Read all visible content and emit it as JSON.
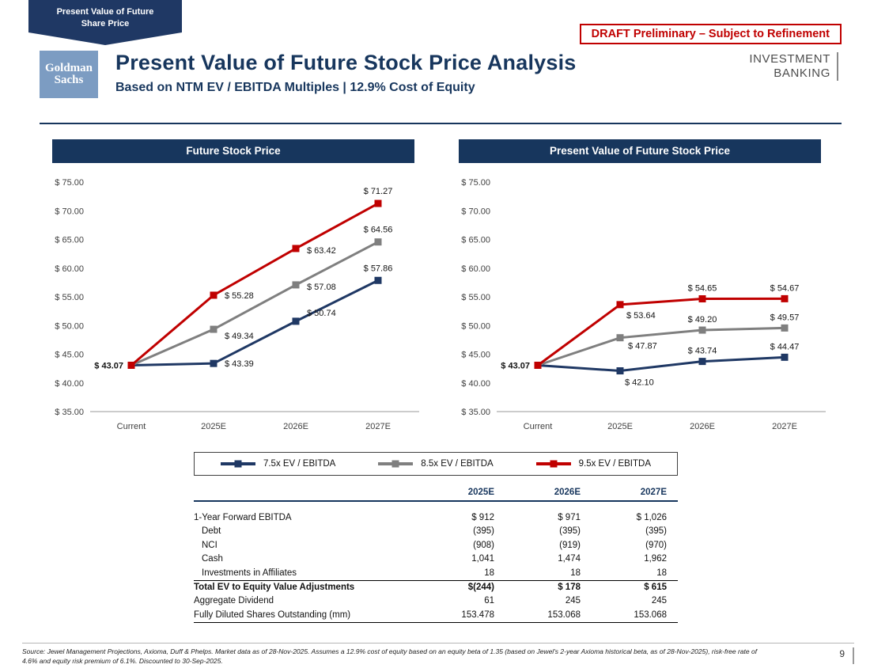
{
  "banner": {
    "line1": "Present Value of Future",
    "line2": "Share Price"
  },
  "draft_notice": "DRAFT Preliminary – Subject to Refinement",
  "header": {
    "logo_line1": "Goldman",
    "logo_line2": "Sachs",
    "title": "Present Value of Future Stock Price Analysis",
    "subtitle": "Based on NTM EV / EBITDA Multiples | 12.9% Cost of Equity",
    "division_line1": "INVESTMENT",
    "division_line2": "BANKING"
  },
  "colors": {
    "navy": "#1F3864",
    "gray": "#7F7F7F",
    "red": "#C00000",
    "header_bar": "#17365D"
  },
  "chart_data": [
    {
      "type": "line",
      "title": "Future Stock Price",
      "x_categories": [
        "Current",
        "2025E",
        "2026E",
        "2027E"
      ],
      "ylim": [
        35,
        75
      ],
      "ytick_step": 5,
      "ytick_prefix": "$ ",
      "grid": false,
      "start_label": "$ 43.07",
      "series": [
        {
          "name": "7.5x EV / EBITDA",
          "color": "#1F3864",
          "values": [
            43.07,
            43.39,
            50.74,
            57.86
          ],
          "point_labels": [
            "",
            "$ 43.39",
            "$ 50.74",
            "$ 57.86"
          ],
          "label_offsets": [
            [
              0,
              0
            ],
            [
              14,
              4
            ],
            [
              14,
              -7
            ],
            [
              0,
              -12
            ]
          ],
          "label_anchors": [
            "start",
            "start",
            "start",
            "middle"
          ]
        },
        {
          "name": "8.5x EV / EBITDA",
          "color": "#7F7F7F",
          "values": [
            43.07,
            49.34,
            57.08,
            64.56
          ],
          "point_labels": [
            "",
            "$ 49.34",
            "$ 57.08",
            "$ 64.56"
          ],
          "label_offsets": [
            [
              0,
              0
            ],
            [
              14,
              12
            ],
            [
              14,
              6
            ],
            [
              0,
              -12
            ]
          ],
          "label_anchors": [
            "start",
            "start",
            "start",
            "middle"
          ]
        },
        {
          "name": "9.5x EV / EBITDA",
          "color": "#C00000",
          "values": [
            43.07,
            55.28,
            63.42,
            71.27
          ],
          "point_labels": [
            "",
            "$ 55.28",
            "$ 63.42",
            "$ 71.27"
          ],
          "label_offsets": [
            [
              0,
              0
            ],
            [
              14,
              4
            ],
            [
              14,
              6
            ],
            [
              0,
              -12
            ]
          ],
          "label_anchors": [
            "start",
            "start",
            "start",
            "middle"
          ]
        }
      ]
    },
    {
      "type": "line",
      "title": "Present Value of Future Stock Price",
      "x_categories": [
        "Current",
        "2025E",
        "2026E",
        "2027E"
      ],
      "ylim": [
        35,
        75
      ],
      "ytick_step": 5,
      "ytick_prefix": "$ ",
      "grid": false,
      "start_label": "$ 43.07",
      "series": [
        {
          "name": "7.5x EV / EBITDA",
          "color": "#1F3864",
          "values": [
            43.07,
            42.1,
            43.74,
            44.47
          ],
          "point_labels": [
            "",
            "$ 42.10",
            "$ 43.74",
            "$ 44.47"
          ],
          "label_offsets": [
            [
              0,
              0
            ],
            [
              6,
              18
            ],
            [
              0,
              -10
            ],
            [
              0,
              -10
            ]
          ],
          "label_anchors": [
            "start",
            "start",
            "middle",
            "middle"
          ]
        },
        {
          "name": "8.5x EV / EBITDA",
          "color": "#7F7F7F",
          "values": [
            43.07,
            47.87,
            49.2,
            49.57
          ],
          "point_labels": [
            "",
            "$ 47.87",
            "$ 49.20",
            "$ 49.57"
          ],
          "label_offsets": [
            [
              0,
              0
            ],
            [
              10,
              14
            ],
            [
              0,
              -10
            ],
            [
              0,
              -10
            ]
          ],
          "label_anchors": [
            "start",
            "start",
            "middle",
            "middle"
          ]
        },
        {
          "name": "9.5x EV / EBITDA",
          "color": "#C00000",
          "values": [
            43.07,
            53.64,
            54.65,
            54.67
          ],
          "point_labels": [
            "",
            "$ 53.64",
            "$ 54.65",
            "$ 54.67"
          ],
          "label_offsets": [
            [
              0,
              0
            ],
            [
              8,
              17
            ],
            [
              0,
              -10
            ],
            [
              0,
              -10
            ]
          ],
          "label_anchors": [
            "start",
            "start",
            "middle",
            "middle"
          ]
        }
      ]
    }
  ],
  "legend": [
    {
      "label": "7.5x EV / EBITDA",
      "color": "#1F3864"
    },
    {
      "label": "8.5x EV / EBITDA",
      "color": "#7F7F7F"
    },
    {
      "label": "9.5x EV / EBITDA",
      "color": "#C00000"
    }
  ],
  "table": {
    "columns": [
      "2025E",
      "2026E",
      "2027E"
    ],
    "rows": [
      {
        "label": "1-Year Forward EBITDA",
        "values": [
          "$ 912",
          "$ 971",
          "$ 1,026"
        ]
      },
      {
        "label": "Debt",
        "values": [
          "(395)",
          "(395)",
          "(395)"
        ],
        "indent": true
      },
      {
        "label": "NCI",
        "values": [
          "(908)",
          "(919)",
          "(970)"
        ],
        "indent": true
      },
      {
        "label": "Cash",
        "values": [
          "1,041",
          "1,474",
          "1,962"
        ],
        "indent": true
      },
      {
        "label": "Investments in Affiliates",
        "values": [
          "18",
          "18",
          "18"
        ],
        "indent": true,
        "rule_below": true
      },
      {
        "label": "Total EV to Equity Value Adjustments",
        "values": [
          "$(244)",
          "$ 178",
          "$ 615"
        ],
        "bold": true
      },
      {
        "label": "Aggregate Dividend",
        "values": [
          "61",
          "245",
          "245"
        ]
      },
      {
        "label": "Fully Diluted Shares Outstanding (mm)",
        "values": [
          "153.478",
          "153.068",
          "153.068"
        ],
        "rule_below": true
      }
    ]
  },
  "footer": {
    "source": "Source: Jewel Management Projections, Axioma, Duff & Phelps. Market data as of 28-Nov-2025. Assumes a 12.9% cost of equity based on an equity beta of 1.35 (based on Jewel's 2-year Axioma historical beta, as of 28-Nov-2025), risk-free rate of 4.6% and equity risk premium of 6.1%. Discounted to 30-Sep-2025.",
    "page_number": "9"
  }
}
